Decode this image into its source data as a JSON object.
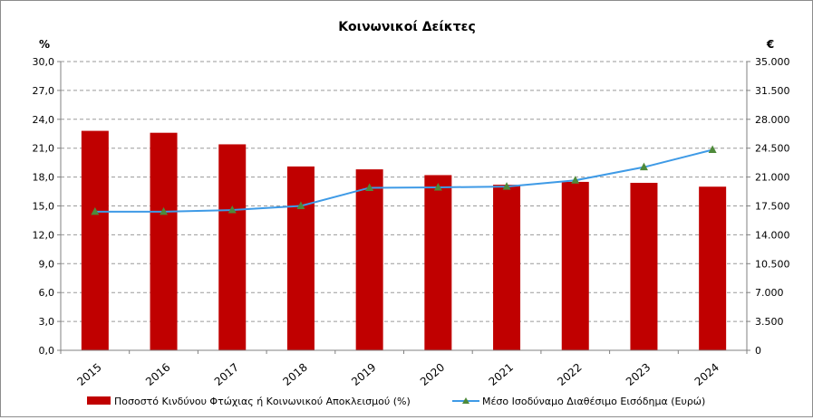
{
  "chart_data": {
    "type": "bar",
    "title": "Κοινωνικοί Δείκτες",
    "categories": [
      "2015",
      "2016",
      "2017",
      "2018",
      "2019",
      "2020",
      "2021",
      "2022",
      "2023",
      "2024"
    ],
    "series": [
      {
        "name": "Ποσοστό Κινδύνου Φτώχιας ή Κοινωνικού Αποκλεισμού (%)",
        "type": "bar",
        "axis": "left",
        "color": "#c00000",
        "values": [
          22.8,
          22.6,
          21.4,
          19.1,
          18.8,
          18.2,
          17.2,
          17.5,
          17.4,
          17.0
        ]
      },
      {
        "name": "Μέσο Ισοδύναμο Διαθέσιμο Εισόδημα (Ευρώ)",
        "type": "line",
        "axis": "right",
        "color": "#3e9ae6",
        "marker_color": "#4e8a3a",
        "values": [
          16800,
          16800,
          17000,
          17500,
          19700,
          19750,
          19850,
          20600,
          22200,
          24300
        ]
      }
    ],
    "y_left": {
      "label": "%",
      "ylim": [
        0,
        30
      ],
      "ticks": [
        "0,0",
        "3,0",
        "6,0",
        "9,0",
        "12,0",
        "15,0",
        "18,0",
        "21,0",
        "24,0",
        "27,0",
        "30,0"
      ]
    },
    "y_right": {
      "label": "€",
      "ylim": [
        0,
        35000
      ],
      "ticks": [
        "0",
        "3.500",
        "7.000",
        "10.500",
        "14.000",
        "17.500",
        "21.000",
        "24.500",
        "28.000",
        "31.500",
        "35.000"
      ]
    },
    "grid": true,
    "legend_position": "bottom"
  }
}
